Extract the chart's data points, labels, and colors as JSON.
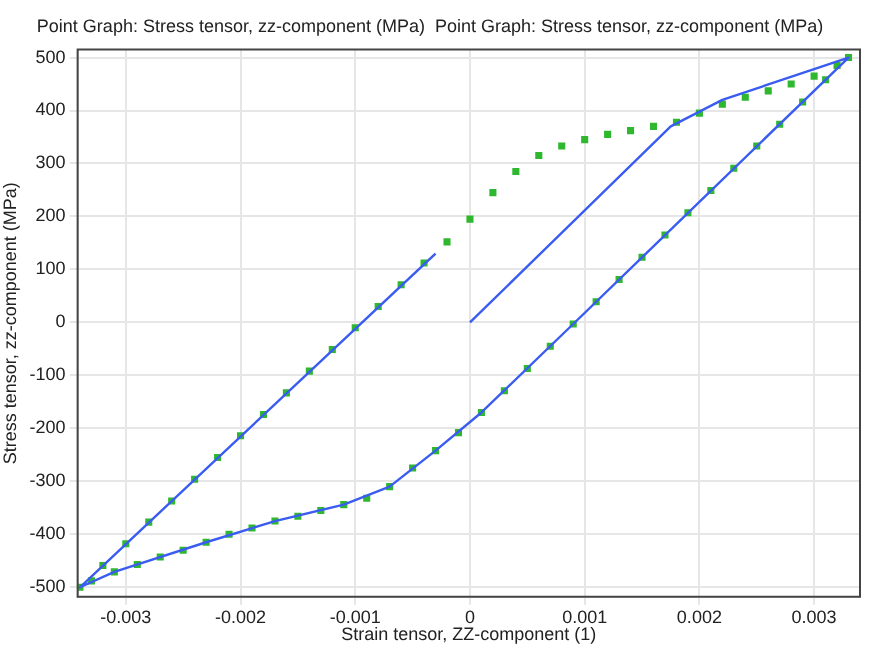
{
  "chart_data": {
    "type": "line",
    "title": "Point Graph: Stress tensor, zz-component (MPa)  Point Graph: Stress tensor, zz-component (MPa)",
    "xlabel": "Strain tensor, ZZ-component (1)",
    "ylabel": "Stress tensor, zz-component (MPa)",
    "xlim": [
      -0.00342,
      0.0034
    ],
    "ylim": [
      -518,
      515
    ],
    "xticks": [
      -0.003,
      -0.002,
      -0.001,
      0,
      0.001,
      0.002,
      0.003
    ],
    "yticks": [
      -500,
      -400,
      -300,
      -200,
      -100,
      0,
      100,
      200,
      300,
      400,
      500
    ],
    "grid": true,
    "legend": false,
    "series": [
      {
        "type": "line",
        "color": "#3a5cf0",
        "marker": "none",
        "x": [
          0,
          0.00175,
          0.0022,
          0.0033,
          0.0009,
          0.0001,
          -0.0003,
          -0.0007,
          -0.0011,
          -0.0017,
          -0.0023,
          -0.0031,
          -0.0034,
          -0.0003
        ],
        "values": [
          0,
          370,
          420,
          500,
          -3,
          -170,
          -242,
          -310,
          -344,
          -375,
          -415,
          -471,
          -500,
          130
        ]
      },
      {
        "type": "scatter",
        "color": "#2fb82f",
        "marker": "square",
        "x": [
          0.0033,
          0.0031,
          0.0029,
          0.0027,
          0.0025,
          0.0023,
          0.0021,
          0.0019,
          0.0017,
          0.0015,
          0.0013,
          0.0011,
          0.0009,
          0.0007,
          0.0005,
          0.0003,
          0.0001,
          -0.0001,
          -0.0003,
          -0.0005,
          -0.0007,
          -0.0009,
          -0.0011,
          -0.0013,
          -0.0015,
          -0.0017,
          -0.0019,
          -0.0021,
          -0.0023,
          -0.0025,
          -0.0027,
          -0.0029,
          -0.0031,
          -0.0033,
          -0.0034,
          -0.0032,
          -0.003,
          -0.0028,
          -0.0026,
          -0.0024,
          -0.0022,
          -0.002,
          -0.0018,
          -0.0016,
          -0.0014,
          -0.0012,
          -0.001,
          -0.0008,
          -0.0006,
          -0.0004,
          -0.0002,
          0,
          0.0002,
          0.0004,
          0.0006,
          0.0008,
          0.001,
          0.0012,
          0.0014,
          0.0016,
          0.0018,
          0.002,
          0.0022,
          0.0024,
          0.0026,
          0.0028,
          0.003,
          0.0032
        ],
        "values": [
          500,
          458,
          416,
          374,
          333,
          291,
          249,
          207,
          165,
          123,
          81,
          39,
          -3,
          -45,
          -87,
          -129,
          -170,
          -208,
          -242,
          -275,
          -310,
          -332,
          -344,
          -355,
          -366,
          -375,
          -388,
          -400,
          -415,
          -430,
          -443,
          -457,
          -471,
          -488,
          -500,
          -459,
          -418,
          -377,
          -337,
          -296,
          -255,
          -214,
          -174,
          -133,
          -92,
          -51,
          -10,
          30,
          71,
          112,
          152,
          195,
          245,
          285,
          315,
          333,
          345,
          355,
          362,
          370,
          378,
          395,
          412,
          425,
          437,
          450,
          465,
          485
        ]
      }
    ]
  }
}
